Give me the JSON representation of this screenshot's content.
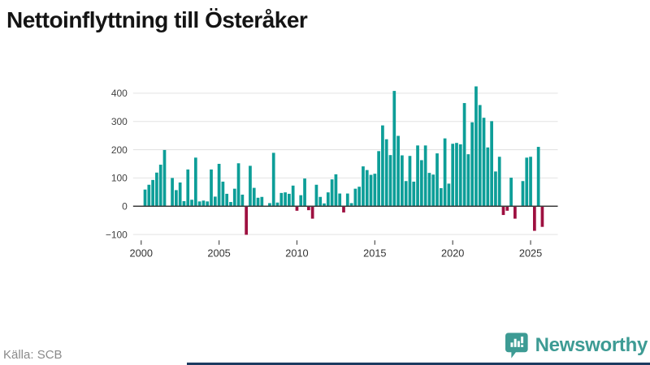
{
  "title": "Nettoinflyttning till Österåker",
  "source_label": "Källa: SCB",
  "branding": {
    "name": "Newsworthy"
  },
  "colors": {
    "positive_bar": "#0d9e98",
    "negative_bar": "#9e1040",
    "grid_line": "#e3e3e3",
    "zero_line": "#3a3a3a",
    "axis_text": "#444444",
    "tick_text": "#333333",
    "title_text": "#141414",
    "source_text": "#8a8a8a",
    "brand_teal": "#3d9b94",
    "bottom_strip": "#1c3b60"
  },
  "chart_data": {
    "type": "bar",
    "title": "Nettoinflyttning till Österåker",
    "xlabel": "",
    "ylabel": "",
    "grid": true,
    "legend": false,
    "period": "quarterly",
    "start_quarter": "2000-Q2",
    "end_quarter": "2025-Q4",
    "ylim": [
      -130,
      440
    ],
    "y_ticks": [
      400,
      300,
      200,
      100,
      0,
      -100
    ],
    "y_tick_labels": [
      "400",
      "300",
      "200",
      "100",
      "0",
      "−100"
    ],
    "x_ticks": [
      2000,
      2005,
      2010,
      2015,
      2020,
      2025
    ],
    "x_tick_labels": [
      "2000",
      "2005",
      "2010",
      "2015",
      "2020",
      "2025"
    ],
    "values": [
      59,
      76,
      93,
      119,
      147,
      199,
      2,
      100,
      57,
      84,
      18,
      130,
      23,
      172,
      17,
      20,
      17,
      130,
      34,
      150,
      87,
      44,
      15,
      62,
      152,
      41,
      -101,
      143,
      65,
      30,
      33,
      2,
      11,
      189,
      13,
      47,
      49,
      44,
      73,
      -16,
      39,
      98,
      -14,
      -44,
      76,
      33,
      10,
      49,
      95,
      113,
      45,
      -22,
      45,
      11,
      62,
      69,
      141,
      128,
      111,
      115,
      195,
      286,
      237,
      181,
      408,
      249,
      180,
      89,
      178,
      87,
      215,
      163,
      215,
      118,
      112,
      187,
      64,
      240,
      80,
      221,
      224,
      219,
      365,
      184,
      297,
      424,
      358,
      313,
      208,
      301,
      123,
      175,
      -31,
      -16,
      101,
      -44,
      2,
      89,
      172,
      175,
      -87,
      210,
      -73
    ]
  }
}
